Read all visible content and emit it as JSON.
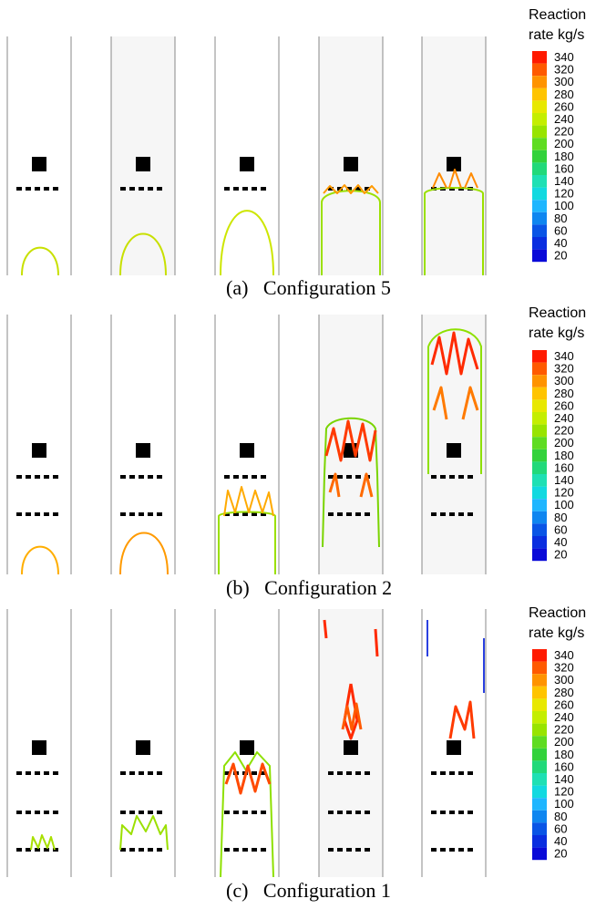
{
  "figure": {
    "legend": {
      "title_line1": "Reaction",
      "title_line2": "rate kg/s",
      "ticks": [
        "340",
        "320",
        "300",
        "280",
        "260",
        "240",
        "220",
        "200",
        "180",
        "160",
        "140",
        "120",
        "100",
        "80",
        "60",
        "40",
        "20"
      ],
      "colors": [
        "#ff1a00",
        "#ff5a00",
        "#ff9300",
        "#ffc400",
        "#e8e800",
        "#c4ee00",
        "#98e400",
        "#5fdc21",
        "#33d23b",
        "#22d97a",
        "#1fe0b4",
        "#12d9e0",
        "#1fb6ff",
        "#0f86f0",
        "#0a55e6",
        "#0a2ee0",
        "#0a0ad8"
      ]
    },
    "panels": [
      {
        "caption": "(a)   Configuration 5"
      },
      {
        "caption": "(b)   Configuration 2"
      },
      {
        "caption": "(c)   Configuration 1"
      }
    ]
  }
}
